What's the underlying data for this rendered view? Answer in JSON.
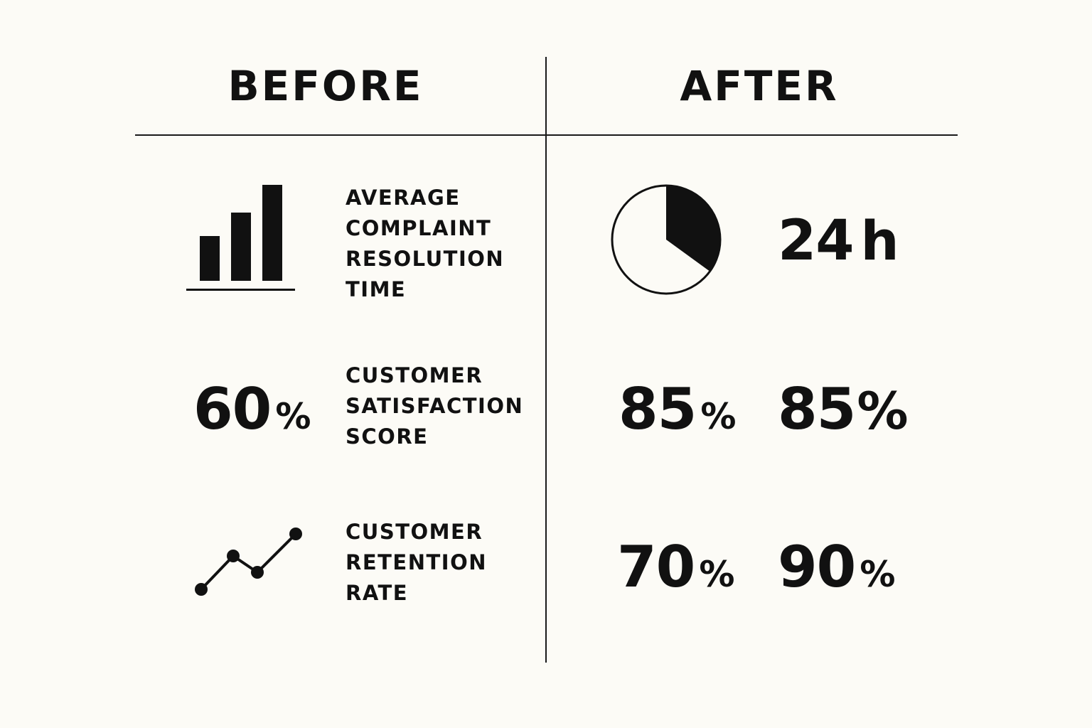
{
  "headings": {
    "before": "BEFORE",
    "after": "AFTER"
  },
  "metrics": [
    {
      "label_lines": [
        "AVERAGE",
        "COMPLAINT",
        "RESOLUTION",
        "TIME"
      ],
      "before_icon": "bar-chart-icon",
      "after_icon": "pie-chart-icon",
      "after": {
        "value": "24",
        "unit": "h"
      }
    },
    {
      "label_lines": [
        "CUSTOMER",
        "SATISFACTION",
        "SCORE"
      ],
      "before": {
        "value": "60",
        "unit": "%"
      },
      "after": [
        {
          "value": "85",
          "unit": "%"
        },
        {
          "value": "85",
          "unit": "%"
        }
      ]
    },
    {
      "label_lines": [
        "CUSTOMER",
        "RETENTION",
        "RATE"
      ],
      "before_icon": "line-trend-icon",
      "after": [
        {
          "value": "70",
          "unit": "%"
        },
        {
          "value": "90",
          "unit": "%"
        }
      ]
    }
  ],
  "colors": {
    "background": "#fcfbf6",
    "ink": "#111111"
  }
}
